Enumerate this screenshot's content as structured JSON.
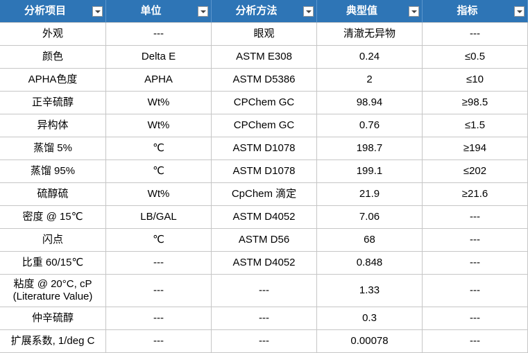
{
  "table": {
    "headers": [
      "分析项目",
      "单位",
      "分析方法",
      "典型值",
      "指标"
    ],
    "rows": [
      [
        "外观",
        "---",
        "眼观",
        "清澈无异物",
        "---"
      ],
      [
        "颜色",
        "Delta E",
        "ASTM E308",
        "0.24",
        "≤0.5"
      ],
      [
        "APHA色度",
        "APHA",
        "ASTM D5386",
        "2",
        "≤10"
      ],
      [
        "正辛硫醇",
        "Wt%",
        "CPChem GC",
        "98.94",
        "≥98.5"
      ],
      [
        "异构体",
        "Wt%",
        "CPChem GC",
        "0.76",
        "≤1.5"
      ],
      [
        "蒸馏 5%",
        "℃",
        "ASTM D1078",
        "198.7",
        "≥194"
      ],
      [
        "蒸馏 95%",
        "℃",
        "ASTM D1078",
        "199.1",
        "≤202"
      ],
      [
        "硫醇硫",
        "Wt%",
        "CpChem 滴定",
        "21.9",
        "≥21.6"
      ],
      [
        "密度 @ 15℃",
        "LB/GAL",
        "ASTM D4052",
        "7.06",
        "---"
      ],
      [
        "闪点",
        "℃",
        "ASTM D56",
        "68",
        "---"
      ],
      [
        "比重 60/15℃",
        "---",
        "ASTM D4052",
        "0.848",
        "---"
      ],
      [
        "粘度 @ 20°C, cP\n(Literature Value)",
        "---",
        "---",
        "1.33",
        "---"
      ],
      [
        "仲辛硫醇",
        "---",
        "---",
        "0.3",
        "---"
      ],
      [
        "扩展系数, 1/deg C",
        "---",
        "---",
        "0.00078",
        "---"
      ]
    ]
  }
}
